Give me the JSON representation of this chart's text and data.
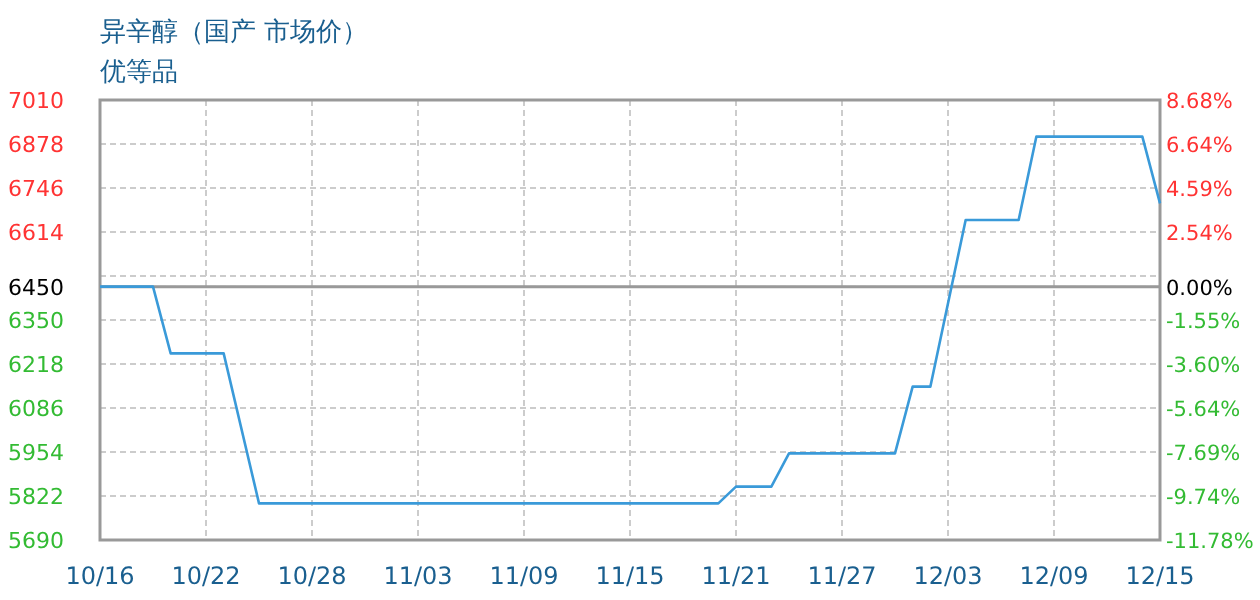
{
  "chart_data": {
    "type": "line",
    "title": "异辛醇（国产 市场价）",
    "subtitle": "优等品",
    "x": [
      "--10-16",
      "--10-19",
      "--10-20",
      "--10-23",
      "--10-25",
      "--11-20",
      "--11-21",
      "--11-23",
      "--11-24",
      "--11-30",
      "--12-01",
      "--12-02",
      "--12-04",
      "--12-07",
      "--12-08",
      "--12-14",
      "--12-15"
    ],
    "series": [
      {
        "color": "#3a9ad9",
        "values": [
          6450,
          6450,
          6250,
          6250,
          5800,
          5800,
          5850,
          5850,
          5950,
          5950,
          6150,
          6150,
          6650,
          6650,
          6900,
          6900,
          6700
        ]
      }
    ],
    "xlim": [
      "--10-16",
      "--12-15"
    ],
    "xticks": [
      {
        "value": "--10-16",
        "label": "10/16"
      },
      {
        "value": "--10-22",
        "label": "10/22"
      },
      {
        "value": "--10-28",
        "label": "10/28"
      },
      {
        "value": "--11-03",
        "label": "11/03"
      },
      {
        "value": "--11-09",
        "label": "11/09"
      },
      {
        "value": "--11-15",
        "label": "11/15"
      },
      {
        "value": "--11-21",
        "label": "11/21"
      },
      {
        "value": "--11-27",
        "label": "11/27"
      },
      {
        "value": "--12-03",
        "label": "12/03"
      },
      {
        "value": "--12-09",
        "label": "12/09"
      },
      {
        "value": "--12-15",
        "label": "12/15"
      }
    ],
    "ylim": [
      5690,
      7010
    ],
    "yticks": [
      7010,
      6878,
      6746,
      6614,
      {
        "value": 6482,
        "label": null
      },
      6450,
      6350,
      6218,
      6086,
      5954,
      5822,
      5690
    ],
    "y2lim": [
      -11.78,
      8.68
    ],
    "y2ticks": [
      {
        "value": 8.68,
        "label": "8.68%"
      },
      {
        "value": 6.64,
        "label": "6.64%"
      },
      {
        "value": 4.59,
        "label": "4.59%"
      },
      {
        "value": 2.54,
        "label": "2.54%"
      },
      {
        "value": 0,
        "label": "0.00%"
      },
      {
        "value": -1.55,
        "label": "-1.55%"
      },
      {
        "value": -3.6,
        "label": "-3.60%"
      },
      {
        "value": -5.64,
        "label": "-5.64%"
      },
      {
        "value": -7.69,
        "label": "-7.69%"
      },
      {
        "value": -9.74,
        "label": "-9.74%"
      },
      {
        "value": -11.78,
        "label": "-11.78%"
      }
    ],
    "ref_lines": [
      {
        "axis": "y",
        "value": 6450,
        "color": "#999999",
        "line_style": "solid"
      }
    ],
    "grid": true,
    "marker": "none",
    "line_style": "solid"
  }
}
